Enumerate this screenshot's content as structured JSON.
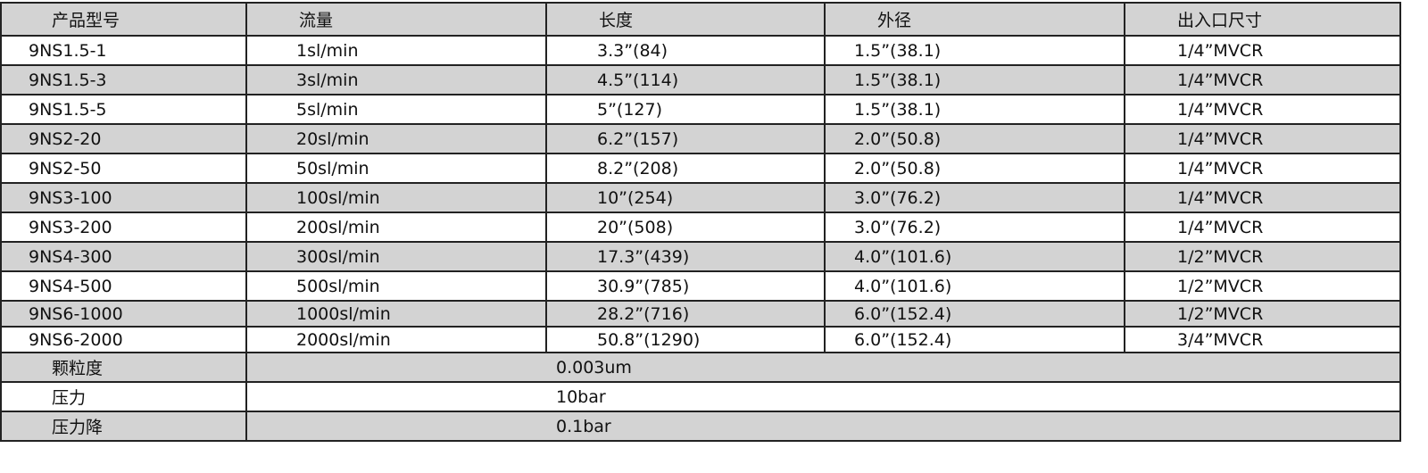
{
  "headers": [
    "产品型号",
    "流量",
    "长度",
    "外径",
    "出入口尺寸"
  ],
  "rows": [
    [
      "9NS1.5-1",
      "1sl/min",
      "3.3”(84)",
      "1.5”(38.1)",
      "1/4”MVCR"
    ],
    [
      "9NS1.5-3",
      "3sl/min",
      "4.5”(114)",
      "1.5”(38.1)",
      "1/4”MVCR"
    ],
    [
      "9NS1.5-5",
      "5sl/min",
      "5”(127)",
      "1.5”(38.1)",
      "1/4”MVCR"
    ],
    [
      "9NS2-20",
      "20sl/min",
      "6.2”(157)",
      "2.0”(50.8)",
      "1/4”MVCR"
    ],
    [
      "9NS2-50",
      "50sl/min",
      "8.2”(208)",
      "2.0”(50.8)",
      "1/4”MVCR"
    ],
    [
      "9NS3-100",
      "100sl/min",
      "10”(254)",
      "3.0”(76.2)",
      "1/4”MVCR"
    ],
    [
      "9NS3-200",
      "200sl/min",
      "20”(508)",
      "3.0”(76.2)",
      "1/4”MVCR"
    ],
    [
      "9NS4-300",
      "300sl/min",
      "17.3”(439)",
      "4.0”(101.6)",
      "1/2”MVCR"
    ],
    [
      "9NS4-500",
      "500sl/min",
      "30.9”(785)",
      "4.0”(101.6)",
      "1/2”MVCR"
    ],
    [
      "9NS6-1000",
      "1000sl/min",
      "28.2”(716)",
      "6.0”(152.4)",
      "1/2”MVCR"
    ],
    [
      "9NS6-2000",
      "2000sl/min",
      "50.8”(1290)",
      "6.0”(152.4)",
      "3/4”MVCR"
    ]
  ],
  "specs": [
    {
      "label": "颗粒度",
      "value": "0.003um"
    },
    {
      "label": "压力",
      "value": "10bar"
    },
    {
      "label": "压力降",
      "value": "0.1bar"
    }
  ],
  "colors": {
    "shaded_row": "#d3d3d3",
    "border": "#222222"
  }
}
